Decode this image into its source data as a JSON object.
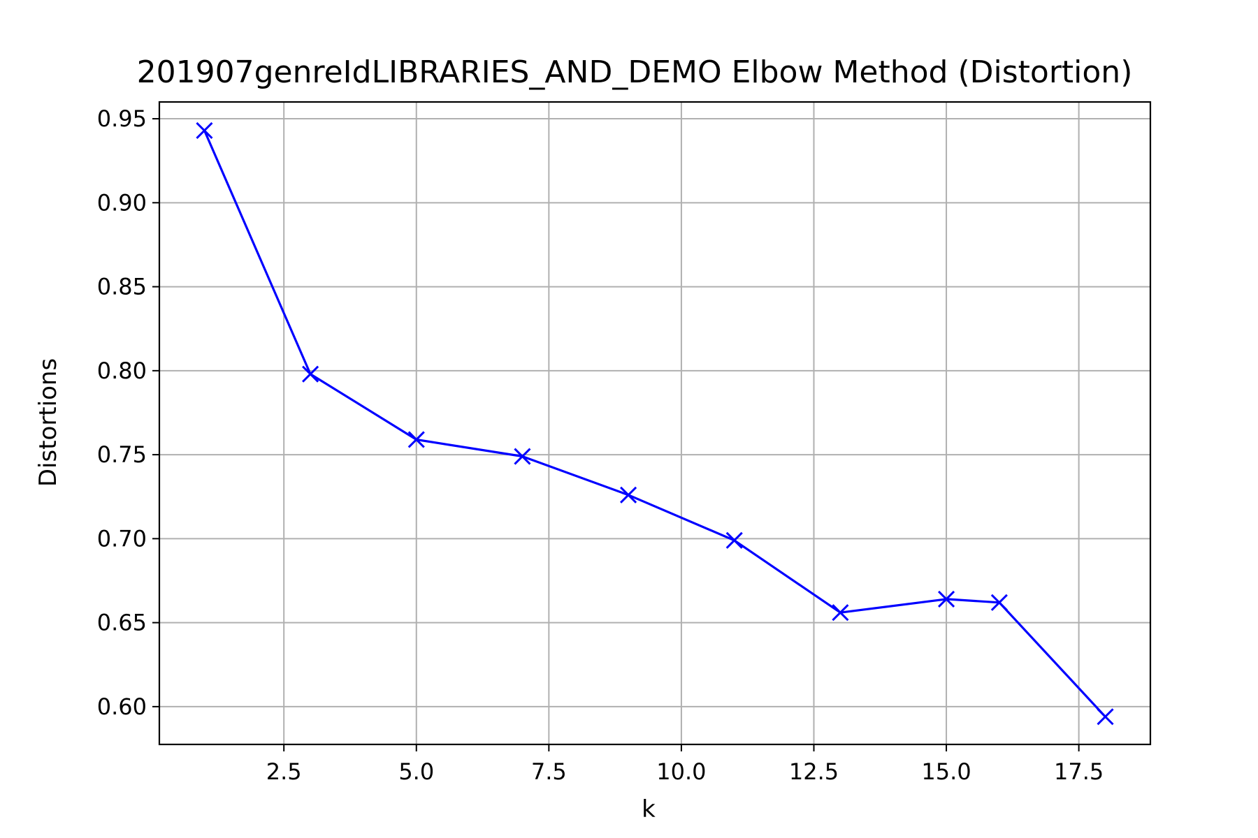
{
  "colors": {
    "series": "#0000ff",
    "grid": "#b0b0b0",
    "axes": "#000000",
    "background": "#ffffff"
  },
  "chart_data": {
    "type": "line",
    "title": "201907genreIdLIBRARIES_AND_DEMO Elbow Method (Distortion)",
    "xlabel": "k",
    "ylabel": "Distortions",
    "xlim": [
      0.15,
      18.85
    ],
    "ylim": [
      0.5775,
      0.96
    ],
    "xticks": [
      2.5,
      5.0,
      7.5,
      10.0,
      12.5,
      15.0,
      17.5
    ],
    "xtick_labels": [
      "2.5",
      "5.0",
      "7.5",
      "10.0",
      "12.5",
      "15.0",
      "17.5"
    ],
    "yticks": [
      0.6,
      0.65,
      0.7,
      0.75,
      0.8,
      0.85,
      0.9,
      0.95
    ],
    "ytick_labels": [
      "0.60",
      "0.65",
      "0.70",
      "0.75",
      "0.80",
      "0.85",
      "0.90",
      "0.95"
    ],
    "grid": true,
    "marker": "x",
    "series": [
      {
        "x": [
          1,
          3,
          5,
          7,
          9,
          11,
          13,
          15,
          16,
          18
        ],
        "y": [
          0.943,
          0.798,
          0.759,
          0.749,
          0.726,
          0.699,
          0.656,
          0.664,
          0.662,
          0.594
        ]
      }
    ]
  }
}
